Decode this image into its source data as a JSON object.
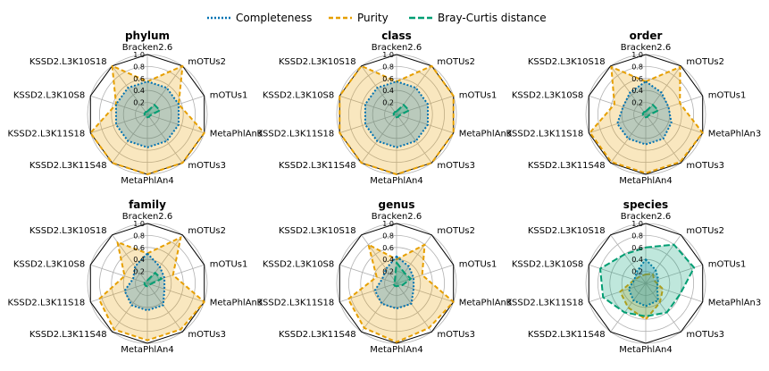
{
  "colors": {
    "completeness": "#0072b2",
    "purity": "#e69f00",
    "bray_curtis": "#009e73",
    "grid": "#b0b0b0",
    "frame": "#000000"
  },
  "legend": [
    {
      "key": "completeness",
      "label": "Completeness"
    },
    {
      "key": "purity",
      "label": "Purity"
    },
    {
      "key": "bray_curtis",
      "label": "Bray-Curtis distance"
    }
  ],
  "chart_data": {
    "type": "radar",
    "axes": [
      "Bracken2.6",
      "mOTUs2",
      "mOTUs1",
      "MetaPhlAn3",
      "mOTUs3",
      "MetaPhlAn4",
      "KSSD2.L3K11S48",
      "KSSD2.L3K11S18",
      "KSSD2.L3K10S8",
      "KSSD2.L3K10S18"
    ],
    "radial_ticks": [
      "0.2",
      "0.4",
      "0.6",
      "0.8",
      "1.0"
    ],
    "rlim": [
      0,
      1
    ],
    "legend_position": "top-center",
    "panels": [
      {
        "title": "phylum",
        "series": [
          {
            "key": "completeness",
            "values": [
              0.55,
              0.55,
              0.55,
              0.55,
              0.55,
              0.55,
              0.55,
              0.55,
              0.55,
              0.55
            ]
          },
          {
            "key": "purity",
            "values": [
              0.55,
              1.0,
              0.55,
              1.0,
              1.0,
              1.0,
              1.0,
              1.0,
              0.55,
              1.0
            ]
          },
          {
            "key": "bray_curtis",
            "values": [
              0.05,
              0.2,
              0.22,
              0.05,
              0.05,
              0.05,
              0.05,
              0.05,
              0.05,
              0.05
            ]
          }
        ]
      },
      {
        "title": "class",
        "series": [
          {
            "key": "completeness",
            "values": [
              0.55,
              0.55,
              0.55,
              0.55,
              0.55,
              0.55,
              0.55,
              0.55,
              0.55,
              0.55
            ]
          },
          {
            "key": "purity",
            "values": [
              0.55,
              1.0,
              1.0,
              1.0,
              1.0,
              1.0,
              1.0,
              1.0,
              1.0,
              1.0
            ]
          },
          {
            "key": "bray_curtis",
            "values": [
              0.05,
              0.2,
              0.22,
              0.05,
              0.05,
              0.05,
              0.05,
              0.05,
              0.05,
              0.05
            ]
          }
        ]
      },
      {
        "title": "order",
        "series": [
          {
            "key": "completeness",
            "values": [
              0.55,
              0.45,
              0.4,
              0.45,
              0.5,
              0.5,
              0.5,
              0.5,
              0.4,
              0.45
            ]
          },
          {
            "key": "purity",
            "values": [
              0.55,
              0.98,
              0.6,
              1.0,
              0.98,
              0.98,
              0.98,
              0.98,
              0.55,
              0.98
            ]
          },
          {
            "key": "bray_curtis",
            "values": [
              0.05,
              0.2,
              0.22,
              0.05,
              0.05,
              0.05,
              0.05,
              0.05,
              0.05,
              0.05
            ]
          }
        ]
      },
      {
        "title": "family",
        "series": [
          {
            "key": "completeness",
            "values": [
              0.5,
              0.35,
              0.3,
              0.3,
              0.45,
              0.45,
              0.45,
              0.4,
              0.25,
              0.35
            ]
          },
          {
            "key": "purity",
            "values": [
              0.5,
              0.95,
              0.45,
              1.0,
              0.95,
              0.95,
              0.95,
              0.85,
              0.4,
              0.85
            ]
          },
          {
            "key": "bray_curtis",
            "values": [
              0.05,
              0.22,
              0.25,
              0.05,
              0.05,
              0.05,
              0.05,
              0.05,
              0.05,
              0.05
            ]
          }
        ]
      },
      {
        "title": "genus",
        "series": [
          {
            "key": "completeness",
            "values": [
              0.45,
              0.35,
              0.3,
              0.3,
              0.42,
              0.42,
              0.42,
              0.38,
              0.25,
              0.3
            ]
          },
          {
            "key": "purity",
            "values": [
              0.4,
              0.8,
              0.45,
              1.0,
              0.92,
              0.98,
              0.92,
              0.85,
              0.35,
              0.8
            ]
          },
          {
            "key": "bray_curtis",
            "values": [
              0.35,
              0.22,
              0.25,
              0.1,
              0.05,
              0.05,
              0.05,
              0.05,
              0.05,
              0.05
            ]
          }
        ]
      },
      {
        "title": "species",
        "series": [
          {
            "key": "completeness",
            "values": [
              0.4,
              0.28,
              0.22,
              0.2,
              0.35,
              0.38,
              0.35,
              0.3,
              0.2,
              0.25
            ]
          },
          {
            "key": "purity",
            "values": [
              0.15,
              0.2,
              0.15,
              0.3,
              0.4,
              0.6,
              0.5,
              0.45,
              0.2,
              0.15
            ]
          },
          {
            "key": "bray_curtis",
            "values": [
              0.6,
              0.8,
              0.85,
              0.6,
              0.6,
              0.55,
              0.6,
              0.75,
              0.8,
              0.6
            ]
          }
        ]
      }
    ]
  }
}
